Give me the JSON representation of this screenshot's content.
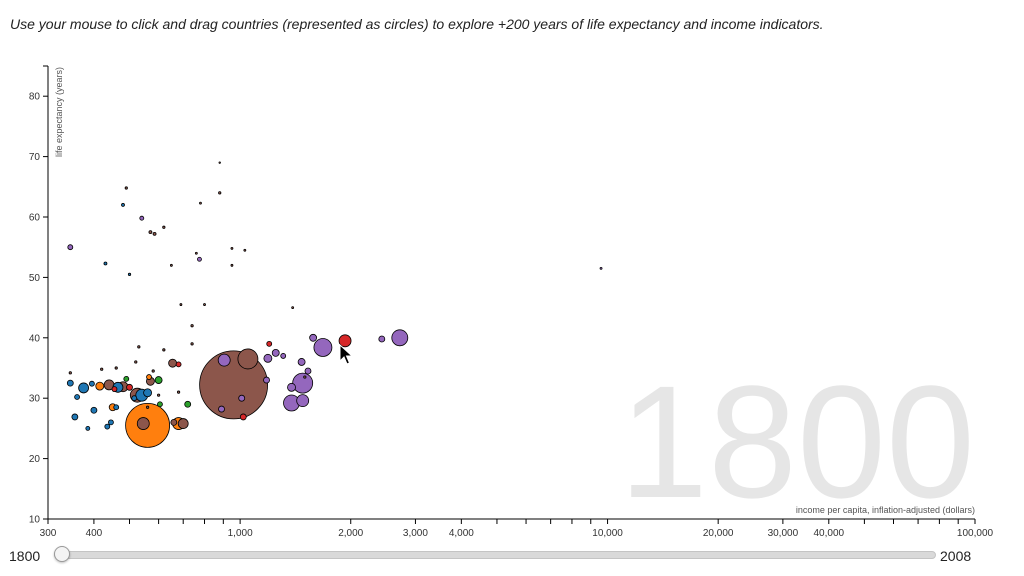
{
  "instructions": "Use your mouse to click and drag countries (represented as circles) to explore +200 years of life expectancy and income indicators.",
  "colors": {
    "purple": "#9467bd",
    "brown": "#8c564b",
    "orange": "#ff7f0e",
    "blue": "#1f77b4",
    "red": "#d62728",
    "green": "#2ca02c",
    "watermark": "#e6e6e6"
  },
  "slider": {
    "min_label": "1800",
    "max_label": "2008",
    "value": 1800,
    "min": 1800,
    "max": 2008
  },
  "chart_data": {
    "type": "scatter",
    "year_label": "1800",
    "xlabel": "income per capita, inflation-adjusted (dollars)",
    "ylabel": "life expectancy (years)",
    "x_scale": "log",
    "xlim": [
      300,
      100000
    ],
    "ylim": [
      10,
      85
    ],
    "x_ticks": [
      {
        "value": 300,
        "label": "300"
      },
      {
        "value": 400,
        "label": "400"
      },
      {
        "value": 500,
        "label": ""
      },
      {
        "value": 600,
        "label": ""
      },
      {
        "value": 700,
        "label": ""
      },
      {
        "value": 800,
        "label": ""
      },
      {
        "value": 900,
        "label": ""
      },
      {
        "value": 1000,
        "label": "1,000"
      },
      {
        "value": 2000,
        "label": "2,000"
      },
      {
        "value": 3000,
        "label": "3,000"
      },
      {
        "value": 4000,
        "label": "4,000"
      },
      {
        "value": 5000,
        "label": ""
      },
      {
        "value": 6000,
        "label": ""
      },
      {
        "value": 7000,
        "label": ""
      },
      {
        "value": 8000,
        "label": ""
      },
      {
        "value": 9000,
        "label": ""
      },
      {
        "value": 10000,
        "label": "10,000"
      },
      {
        "value": 20000,
        "label": "20,000"
      },
      {
        "value": 30000,
        "label": "30,000"
      },
      {
        "value": 40000,
        "label": "40,000"
      },
      {
        "value": 50000,
        "label": ""
      },
      {
        "value": 60000,
        "label": ""
      },
      {
        "value": 70000,
        "label": ""
      },
      {
        "value": 80000,
        "label": ""
      },
      {
        "value": 90000,
        "label": ""
      },
      {
        "value": 100000,
        "label": "100,000"
      }
    ],
    "y_ticks": [
      {
        "value": 10,
        "label": "10"
      },
      {
        "value": 20,
        "label": "20"
      },
      {
        "value": 30,
        "label": "30"
      },
      {
        "value": 40,
        "label": "40"
      },
      {
        "value": 50,
        "label": "50"
      },
      {
        "value": 60,
        "label": "60"
      },
      {
        "value": 70,
        "label": "70"
      },
      {
        "value": 80,
        "label": "80"
      }
    ],
    "points": [
      {
        "x": 960,
        "y": 32.2,
        "r": 34,
        "c": "brown"
      },
      {
        "x": 560,
        "y": 25.5,
        "r": 22,
        "c": "orange"
      },
      {
        "x": 1050,
        "y": 36.5,
        "r": 10,
        "c": "brown"
      },
      {
        "x": 905,
        "y": 36.3,
        "r": 6,
        "c": "purple"
      },
      {
        "x": 1680,
        "y": 38.4,
        "r": 9,
        "c": "purple"
      },
      {
        "x": 1930,
        "y": 39.5,
        "r": 6,
        "c": "red"
      },
      {
        "x": 2720,
        "y": 40.0,
        "r": 8,
        "c": "purple"
      },
      {
        "x": 1480,
        "y": 32.5,
        "r": 10,
        "c": "purple"
      },
      {
        "x": 1380,
        "y": 29.2,
        "r": 8,
        "c": "purple"
      },
      {
        "x": 1480,
        "y": 29.6,
        "r": 6,
        "c": "purple"
      },
      {
        "x": 1380,
        "y": 31.8,
        "r": 4,
        "c": "purple"
      },
      {
        "x": 1190,
        "y": 36.6,
        "r": 4,
        "c": "purple"
      },
      {
        "x": 1580,
        "y": 40.0,
        "r": 3.5,
        "c": "purple"
      },
      {
        "x": 1250,
        "y": 37.5,
        "r": 3.5,
        "c": "purple"
      },
      {
        "x": 1470,
        "y": 36.0,
        "r": 3.5,
        "c": "purple"
      },
      {
        "x": 1530,
        "y": 34.5,
        "r": 3,
        "c": "purple"
      },
      {
        "x": 1310,
        "y": 37.0,
        "r": 2.5,
        "c": "purple"
      },
      {
        "x": 1200,
        "y": 39.0,
        "r": 2.5,
        "c": "red"
      },
      {
        "x": 2430,
        "y": 39.8,
        "r": 3,
        "c": "purple"
      },
      {
        "x": 1180,
        "y": 33.0,
        "r": 3,
        "c": "purple"
      },
      {
        "x": 1010,
        "y": 30.0,
        "r": 3,
        "c": "purple"
      },
      {
        "x": 890,
        "y": 28.2,
        "r": 3,
        "c": "purple"
      },
      {
        "x": 345,
        "y": 55.0,
        "r": 2.5,
        "c": "purple"
      },
      {
        "x": 540,
        "y": 59.8,
        "r": 2,
        "c": "purple"
      },
      {
        "x": 775,
        "y": 53.0,
        "r": 2,
        "c": "purple"
      },
      {
        "x": 525,
        "y": 30.5,
        "r": 7,
        "c": "brown"
      },
      {
        "x": 680,
        "y": 25.8,
        "r": 6,
        "c": "orange"
      },
      {
        "x": 700,
        "y": 25.8,
        "r": 5,
        "c": "brown"
      },
      {
        "x": 545,
        "y": 25.8,
        "r": 6,
        "c": "brown"
      },
      {
        "x": 440,
        "y": 32.2,
        "r": 5,
        "c": "brown"
      },
      {
        "x": 480,
        "y": 31.9,
        "r": 5,
        "c": "brown"
      },
      {
        "x": 570,
        "y": 32.8,
        "r": 4,
        "c": "brown"
      },
      {
        "x": 655,
        "y": 35.8,
        "r": 4,
        "c": "brown"
      },
      {
        "x": 660,
        "y": 26.0,
        "r": 3,
        "c": "brown"
      },
      {
        "x": 1020,
        "y": 26.9,
        "r": 3,
        "c": "red"
      },
      {
        "x": 540,
        "y": 30.5,
        "r": 6,
        "c": "blue"
      },
      {
        "x": 375,
        "y": 31.7,
        "r": 5,
        "c": "blue"
      },
      {
        "x": 465,
        "y": 31.8,
        "r": 5,
        "c": "blue"
      },
      {
        "x": 560,
        "y": 30.9,
        "r": 4,
        "c": "blue"
      },
      {
        "x": 400,
        "y": 28.0,
        "r": 3,
        "c": "blue"
      },
      {
        "x": 355,
        "y": 26.9,
        "r": 3,
        "c": "blue"
      },
      {
        "x": 445,
        "y": 26.0,
        "r": 2.5,
        "c": "blue"
      },
      {
        "x": 345,
        "y": 32.5,
        "r": 3,
        "c": "blue"
      },
      {
        "x": 360,
        "y": 30.2,
        "r": 2.5,
        "c": "blue"
      },
      {
        "x": 460,
        "y": 28.5,
        "r": 2.5,
        "c": "blue"
      },
      {
        "x": 515,
        "y": 30.0,
        "r": 2.5,
        "c": "blue"
      },
      {
        "x": 395,
        "y": 32.4,
        "r": 2.5,
        "c": "blue"
      },
      {
        "x": 435,
        "y": 25.3,
        "r": 2.5,
        "c": "blue"
      },
      {
        "x": 385,
        "y": 25.0,
        "r": 2,
        "c": "blue"
      },
      {
        "x": 415,
        "y": 32.0,
        "r": 4,
        "c": "orange"
      },
      {
        "x": 450,
        "y": 28.5,
        "r": 3.5,
        "c": "orange"
      },
      {
        "x": 565,
        "y": 33.5,
        "r": 2.5,
        "c": "orange"
      },
      {
        "x": 600,
        "y": 33.0,
        "r": 3.5,
        "c": "green"
      },
      {
        "x": 490,
        "y": 33.2,
        "r": 2.5,
        "c": "green"
      },
      {
        "x": 605,
        "y": 29.0,
        "r": 2.5,
        "c": "green"
      },
      {
        "x": 720,
        "y": 29.0,
        "r": 3,
        "c": "green"
      },
      {
        "x": 500,
        "y": 31.8,
        "r": 3,
        "c": "red"
      },
      {
        "x": 680,
        "y": 35.6,
        "r": 2.5,
        "c": "red"
      },
      {
        "x": 455,
        "y": 31.5,
        "r": 2.5,
        "c": "red"
      },
      {
        "x": 490,
        "y": 64.8,
        "r": 1.2,
        "c": "brown"
      },
      {
        "x": 480,
        "y": 62.0,
        "r": 1.5,
        "c": "blue"
      },
      {
        "x": 570,
        "y": 57.5,
        "r": 1.5,
        "c": "brown"
      },
      {
        "x": 585,
        "y": 57.2,
        "r": 1.5,
        "c": "brown"
      },
      {
        "x": 620,
        "y": 58.3,
        "r": 1.2,
        "c": "brown"
      },
      {
        "x": 430,
        "y": 52.3,
        "r": 1.5,
        "c": "blue"
      },
      {
        "x": 500,
        "y": 50.5,
        "r": 1.2,
        "c": "blue"
      },
      {
        "x": 880,
        "y": 64.0,
        "r": 1.2,
        "c": "brown"
      },
      {
        "x": 780,
        "y": 62.3,
        "r": 1,
        "c": "brown"
      },
      {
        "x": 650,
        "y": 52.0,
        "r": 1,
        "c": "brown"
      },
      {
        "x": 760,
        "y": 54.0,
        "r": 1,
        "c": "brown"
      },
      {
        "x": 950,
        "y": 54.8,
        "r": 1,
        "c": "brown"
      },
      {
        "x": 1030,
        "y": 54.5,
        "r": 1,
        "c": "brown"
      },
      {
        "x": 950,
        "y": 52.0,
        "r": 1,
        "c": "brown"
      },
      {
        "x": 690,
        "y": 45.5,
        "r": 1,
        "c": "brown"
      },
      {
        "x": 800,
        "y": 45.5,
        "r": 1,
        "c": "brown"
      },
      {
        "x": 740,
        "y": 42.0,
        "r": 1.2,
        "c": "brown"
      },
      {
        "x": 1390,
        "y": 45.0,
        "r": 1,
        "c": "brown"
      },
      {
        "x": 9600,
        "y": 51.5,
        "r": 1,
        "c": "purple"
      },
      {
        "x": 880,
        "y": 69.0,
        "r": 0.8,
        "c": "brown"
      },
      {
        "x": 530,
        "y": 38.5,
        "r": 1.2,
        "c": "brown"
      },
      {
        "x": 620,
        "y": 38.0,
        "r": 1.2,
        "c": "brown"
      },
      {
        "x": 345,
        "y": 34.2,
        "r": 1.2,
        "c": "brown"
      },
      {
        "x": 420,
        "y": 34.8,
        "r": 1.2,
        "c": "brown"
      },
      {
        "x": 520,
        "y": 36.0,
        "r": 1.2,
        "c": "brown"
      },
      {
        "x": 600,
        "y": 30.5,
        "r": 1.2,
        "c": "brown"
      },
      {
        "x": 740,
        "y": 39.0,
        "r": 1.2,
        "c": "brown"
      },
      {
        "x": 580,
        "y": 34.5,
        "r": 1.2,
        "c": "brown"
      },
      {
        "x": 1500,
        "y": 33.5,
        "r": 1.2,
        "c": "brown"
      },
      {
        "x": 560,
        "y": 28.5,
        "r": 1.2,
        "c": "brown"
      },
      {
        "x": 680,
        "y": 31.0,
        "r": 1.2,
        "c": "brown"
      },
      {
        "x": 460,
        "y": 35.0,
        "r": 1.2,
        "c": "brown"
      }
    ]
  }
}
